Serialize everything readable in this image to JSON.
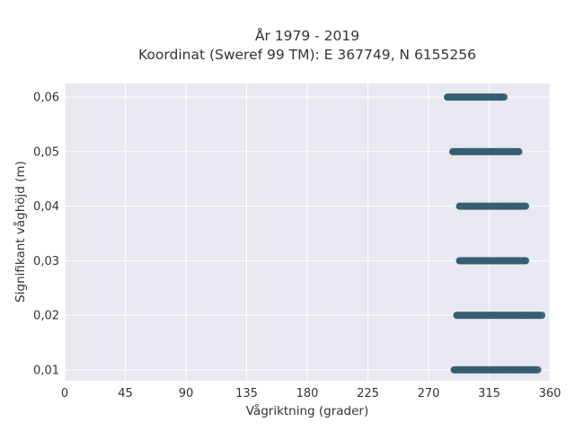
{
  "chart_data": {
    "type": "scatter",
    "title": "År 1979 - 2019",
    "subtitle": "Koordinat (Sweref 99 TM): E 367749, N 6155256",
    "xlabel": "Vågriktning (grader)",
    "ylabel": "Signifikant våghöjd (m)",
    "xlim": [
      0,
      360
    ],
    "ylim": [
      0.008,
      0.0625
    ],
    "x_ticks": [
      0,
      45,
      90,
      135,
      180,
      225,
      270,
      315,
      360
    ],
    "x_tick_labels": [
      "0",
      "45",
      "90",
      "135",
      "180",
      "225",
      "270",
      "315",
      "360"
    ],
    "y_ticks": [
      0.01,
      0.02,
      0.03,
      0.04,
      0.05,
      0.06
    ],
    "y_tick_labels": [
      "0,01",
      "0,02",
      "0,03",
      "0,04",
      "0,05",
      "0,06"
    ],
    "grid": true,
    "marker_color": "#2f5a6e",
    "background_color": "#e8e8f0",
    "series": [
      {
        "bands": [
          {
            "y": 0.01,
            "x_min": 289,
            "x_max": 351
          },
          {
            "y": 0.02,
            "x_min": 291,
            "x_max": 354
          },
          {
            "y": 0.03,
            "x_min": 293,
            "x_max": 342
          },
          {
            "y": 0.04,
            "x_min": 293,
            "x_max": 342
          },
          {
            "y": 0.05,
            "x_min": 288,
            "x_max": 337
          },
          {
            "y": 0.06,
            "x_min": 284,
            "x_max": 326
          }
        ],
        "outliers": [
          {
            "x": 323,
            "y": 0.06
          }
        ]
      }
    ]
  }
}
